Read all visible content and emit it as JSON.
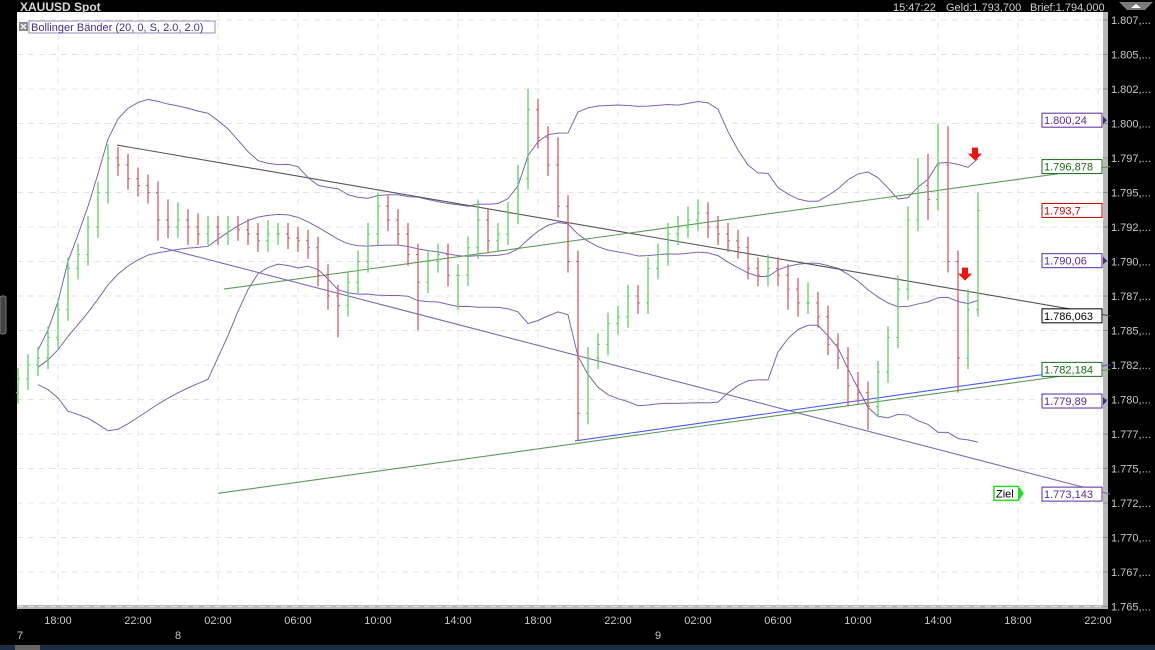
{
  "header": {
    "title": "XAUUSD Spot",
    "time": "15:47:22",
    "bid": "Geld:1.793,700",
    "ask": "Brief:1.794,000"
  },
  "indicator_legend": "Bollinger Bänder (20, 0, S, 2.0, 2.0)",
  "colors": {
    "background": "#000000",
    "plot": "#ffffff",
    "up_bar": "#5fcf5f",
    "down_bar": "#cf5f5f",
    "bollinger": "#7e62b4",
    "grid": "#e4e4e4"
  },
  "chart_data": {
    "type": "ohlc",
    "symbol": "XAUUSD Spot",
    "first_bar": "7 16:00",
    "bar_interval_minutes": 30,
    "bars": [
      [
        1780.5,
        1782.3,
        1779.7,
        1781.5
      ],
      [
        1781.5,
        1783.3,
        1780.7,
        1782.5
      ],
      [
        1782.5,
        1783.8,
        1781.7,
        1783
      ],
      [
        1783,
        1785.3,
        1782.2,
        1784.5
      ],
      [
        1784.5,
        1787.3,
        1783.7,
        1786.5
      ],
      [
        1786.5,
        1790.3,
        1785.7,
        1789.5
      ],
      [
        1789.5,
        1791.3,
        1788.7,
        1790.5
      ],
      [
        1790.5,
        1793.3,
        1789.7,
        1792.5
      ],
      [
        1792.5,
        1795.8,
        1791.7,
        1795
      ],
      [
        1795,
        1798.5,
        1794.2,
        1797.5
      ],
      [
        1797.5,
        1798.3,
        1796.2,
        1797
      ],
      [
        1797,
        1797.8,
        1795.2,
        1796
      ],
      [
        1796,
        1796.8,
        1794.7,
        1795.5
      ],
      [
        1795.5,
        1796.3,
        1794.2,
        1795
      ],
      [
        1795,
        1795.8,
        1791.5,
        1793
      ],
      [
        1793,
        1794.5,
        1791.7,
        1792.5
      ],
      [
        1792.5,
        1794.3,
        1791.7,
        1793
      ],
      [
        1793,
        1793.8,
        1791.2,
        1792.5
      ],
      [
        1792.5,
        1793.5,
        1791.2,
        1792
      ],
      [
        1792,
        1793.3,
        1791.2,
        1792.5
      ],
      [
        1792.5,
        1793.3,
        1791.2,
        1792
      ],
      [
        1792,
        1793.3,
        1791.2,
        1792.5
      ],
      [
        1792.5,
        1793.3,
        1791.5,
        1792.3
      ],
      [
        1792.3,
        1793.1,
        1791.2,
        1792
      ],
      [
        1792,
        1792.8,
        1790.7,
        1791.5
      ],
      [
        1791.5,
        1793,
        1790.7,
        1792
      ],
      [
        1792,
        1792.8,
        1791.2,
        1792
      ],
      [
        1792,
        1792.8,
        1790.9,
        1791.7
      ],
      [
        1791.7,
        1792.5,
        1790.7,
        1791.5
      ],
      [
        1791.5,
        1792.3,
        1790.2,
        1791
      ],
      [
        1791,
        1791.8,
        1788.2,
        1789
      ],
      [
        1789,
        1789.8,
        1786.5,
        1787.5
      ],
      [
        1787.5,
        1788.3,
        1784.5,
        1786.8
      ],
      [
        1786.8,
        1789.3,
        1786,
        1788.5
      ],
      [
        1788.5,
        1790.8,
        1787.7,
        1790
      ],
      [
        1790,
        1792.8,
        1789.2,
        1792
      ],
      [
        1792,
        1795,
        1791.2,
        1794
      ],
      [
        1794,
        1794.8,
        1792.2,
        1793
      ],
      [
        1793,
        1793.8,
        1791.2,
        1792
      ],
      [
        1792,
        1792.8,
        1789.7,
        1790.5
      ],
      [
        1790.5,
        1791.3,
        1785,
        1788.5
      ],
      [
        1788.5,
        1790.8,
        1787.7,
        1790
      ],
      [
        1790,
        1791.3,
        1789.2,
        1790.5
      ],
      [
        1790.5,
        1791.3,
        1788.2,
        1789
      ],
      [
        1789,
        1789.8,
        1786.5,
        1789
      ],
      [
        1789,
        1791.8,
        1788.2,
        1791
      ],
      [
        1791,
        1794.5,
        1790.2,
        1793
      ],
      [
        1793,
        1793.8,
        1790.7,
        1791.5
      ],
      [
        1791.5,
        1792.8,
        1790.7,
        1792
      ],
      [
        1792,
        1794.3,
        1791.2,
        1793.5
      ],
      [
        1793.5,
        1797,
        1792.7,
        1796
      ],
      [
        1796,
        1802.5,
        1795.2,
        1801
      ],
      [
        1801,
        1801.8,
        1798.2,
        1799
      ],
      [
        1799,
        1799.8,
        1796.2,
        1797
      ],
      [
        1797,
        1799,
        1793.2,
        1794
      ],
      [
        1794,
        1794.8,
        1789.2,
        1790
      ],
      [
        1790,
        1790.8,
        1777,
        1779
      ],
      [
        1779,
        1783.8,
        1778.2,
        1783
      ],
      [
        1783,
        1784.8,
        1782.2,
        1784
      ],
      [
        1784,
        1786.3,
        1783.2,
        1785.5
      ],
      [
        1785.5,
        1786.8,
        1784.7,
        1786
      ],
      [
        1786,
        1788.3,
        1785.2,
        1787.5
      ],
      [
        1787.5,
        1788.3,
        1786.2,
        1787
      ],
      [
        1787,
        1790.3,
        1786.2,
        1789.5
      ],
      [
        1789.5,
        1791.3,
        1788.7,
        1790.5
      ],
      [
        1790.5,
        1792.8,
        1789.7,
        1792
      ],
      [
        1792,
        1793.3,
        1791.2,
        1792.5
      ],
      [
        1792.5,
        1794,
        1791.7,
        1793
      ],
      [
        1793,
        1794.5,
        1792.2,
        1793.5
      ],
      [
        1793.5,
        1794.3,
        1791.7,
        1792.5
      ],
      [
        1792.5,
        1793.3,
        1791.2,
        1792
      ],
      [
        1792,
        1792.8,
        1790.7,
        1791.5
      ],
      [
        1791.5,
        1792.3,
        1790.2,
        1791
      ],
      [
        1791,
        1791.8,
        1788.7,
        1789.5
      ],
      [
        1789.5,
        1790.3,
        1788.2,
        1789
      ],
      [
        1789,
        1790.5,
        1788.2,
        1789.5
      ],
      [
        1789.5,
        1790.3,
        1788.2,
        1789
      ],
      [
        1789,
        1789.8,
        1786.5,
        1788
      ],
      [
        1788,
        1788.8,
        1786,
        1787
      ],
      [
        1787,
        1788.5,
        1786.2,
        1787
      ],
      [
        1787,
        1787.8,
        1785.2,
        1786
      ],
      [
        1786,
        1786.8,
        1783.2,
        1784
      ],
      [
        1784,
        1784.8,
        1782.2,
        1783
      ],
      [
        1783,
        1783.8,
        1779.5,
        1781
      ],
      [
        1781,
        1782,
        1779.7,
        1780.5
      ],
      [
        1780.5,
        1781.3,
        1777.8,
        1779.5
      ],
      [
        1779.5,
        1782.8,
        1778.7,
        1782
      ],
      [
        1782,
        1785.3,
        1781.2,
        1784.5
      ],
      [
        1784.5,
        1789,
        1783.7,
        1788
      ],
      [
        1788,
        1794,
        1787.2,
        1793
      ],
      [
        1793,
        1797.5,
        1792.2,
        1795.5
      ],
      [
        1795.5,
        1797.8,
        1793,
        1794.5
      ],
      [
        1794.5,
        1800,
        1793.7,
        1797
      ],
      [
        1797,
        1799.8,
        1789.2,
        1790
      ],
      [
        1790,
        1790.8,
        1780.5,
        1783
      ],
      [
        1783,
        1788,
        1782.2,
        1786.5
      ],
      [
        1786.5,
        1795,
        1786,
        1793.7
      ]
    ],
    "bollinger": {
      "period": 20,
      "stddev": 2.0
    },
    "ylim": [
      1764.8,
      1808.3
    ],
    "y_ticks": [
      {
        "value": 1807.5,
        "label": "1.807,..."
      },
      {
        "value": 1805,
        "label": "1.805,..."
      },
      {
        "value": 1802.5,
        "label": "1.802,..."
      },
      {
        "value": 1800,
        "label": "1.800,..."
      },
      {
        "value": 1797.5,
        "label": "1.797,..."
      },
      {
        "value": 1795,
        "label": "1.795,..."
      },
      {
        "value": 1792.5,
        "label": "1.792,..."
      },
      {
        "value": 1790,
        "label": "1.790,..."
      },
      {
        "value": 1787.5,
        "label": "1.787,..."
      },
      {
        "value": 1785,
        "label": "1.785,..."
      },
      {
        "value": 1782.5,
        "label": "1.782,..."
      },
      {
        "value": 1780,
        "label": "1.780,..."
      },
      {
        "value": 1777.5,
        "label": "1.777,..."
      },
      {
        "value": 1775,
        "label": "1.775,..."
      },
      {
        "value": 1772.5,
        "label": "1.772,..."
      },
      {
        "value": 1770,
        "label": "1.770,..."
      },
      {
        "value": 1767.5,
        "label": "1.767,..."
      },
      {
        "value": 1765,
        "label": "1.765,..."
      }
    ],
    "x_ticks": [
      {
        "t": "7 18:00",
        "label": "18:00"
      },
      {
        "t": "7 22:00",
        "label": "22:00"
      },
      {
        "t": "8 02:00",
        "label": "02:00"
      },
      {
        "t": "8 06:00",
        "label": "06:00"
      },
      {
        "t": "8 10:00",
        "label": "10:00"
      },
      {
        "t": "8 14:00",
        "label": "14:00"
      },
      {
        "t": "8 18:00",
        "label": "18:00"
      },
      {
        "t": "8 22:00",
        "label": "22:00"
      },
      {
        "t": "9 02:00",
        "label": "02:00"
      },
      {
        "t": "9 06:00",
        "label": "06:00"
      },
      {
        "t": "9 10:00",
        "label": "10:00"
      },
      {
        "t": "9 14:00",
        "label": "14:00"
      },
      {
        "t": "9 18:00",
        "label": "18:00"
      },
      {
        "t": "9 22:00",
        "label": "22:00"
      }
    ],
    "day_labels": [
      {
        "t": "7 16:00",
        "label": "7"
      },
      {
        "t": "8 00:00",
        "label": "8"
      },
      {
        "t": "9 00:00",
        "label": "9"
      }
    ],
    "trendlines": [
      {
        "name": "resistance-line",
        "color": "#555555",
        "from": {
          "t": "7 20:57",
          "p": 1798.44
        },
        "to": {
          "t": "9 22:36",
          "p": 1786.063
        }
      },
      {
        "name": "upper-channel-line",
        "color": "#5a9a5a",
        "from": {
          "t": "8 02:18",
          "p": 1788.0
        },
        "to": {
          "t": "9 22:36",
          "p": 1796.878
        }
      },
      {
        "name": "descending-support-line",
        "color": "#8068b8",
        "from": {
          "t": "7 23:06",
          "p": 1791.05
        },
        "to": {
          "t": "9 22:36",
          "p": 1773.143
        }
      },
      {
        "name": "blue-support-line",
        "color": "#4a5af0",
        "from": {
          "t": "8 19:51",
          "p": 1777.0
        },
        "to": {
          "t": "9 22:36",
          "p": 1782.5
        }
      },
      {
        "name": "lower-channel-line",
        "color": "#5a9a5a",
        "from": {
          "t": "8 02:00",
          "p": 1773.2
        },
        "to": {
          "t": "9 22:36",
          "p": 1782.184
        }
      }
    ],
    "price_labels": [
      {
        "label": "1.800,24",
        "p": 1800.24,
        "color": "#5a2a9a",
        "marker": true
      },
      {
        "label": "1.796,878",
        "p": 1796.878,
        "color": "#1a6a1a",
        "marker": false
      },
      {
        "label": "1.793,7",
        "p": 1793.7,
        "color": "#cc0000",
        "marker": false
      },
      {
        "label": "1.790,06",
        "p": 1790.06,
        "color": "#5a2a9a",
        "marker": true
      },
      {
        "label": "1.786,063",
        "p": 1786.063,
        "color": "#000000",
        "marker": false
      },
      {
        "label": "1.782,184",
        "p": 1782.184,
        "color": "#1a6a1a",
        "marker": false
      },
      {
        "label": "1.779,89",
        "p": 1779.89,
        "color": "#5a2a9a",
        "marker": true
      },
      {
        "label": "1.773,143",
        "p": 1773.143,
        "color": "#5a2a9a",
        "marker": false
      }
    ],
    "signals": [
      {
        "type": "sell-arrow",
        "t": "9 15:51",
        "p": 1797.6
      },
      {
        "type": "sell-arrow",
        "t": "9 15:21",
        "p": 1788.9
      }
    ],
    "target": {
      "label": "Ziel",
      "t": "9 17:30",
      "p": 1773.2
    }
  }
}
